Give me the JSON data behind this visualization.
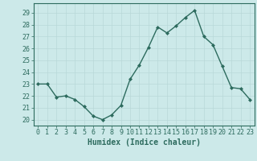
{
  "x": [
    0,
    1,
    2,
    3,
    4,
    5,
    6,
    7,
    8,
    9,
    10,
    11,
    12,
    13,
    14,
    15,
    16,
    17,
    18,
    19,
    20,
    21,
    22,
    23
  ],
  "y": [
    23,
    23,
    21.9,
    22,
    21.7,
    21.1,
    20.3,
    20.0,
    20.4,
    21.2,
    23.4,
    24.6,
    26.1,
    27.8,
    27.3,
    27.9,
    28.6,
    29.2,
    27.0,
    26.3,
    24.5,
    22.7,
    22.6,
    21.7
  ],
  "line_color": "#2d6b5e",
  "marker": "D",
  "marker_size": 2.0,
  "line_width": 1.0,
  "xlabel": "Humidex (Indice chaleur)",
  "xlim": [
    -0.5,
    23.5
  ],
  "ylim": [
    19.5,
    29.8
  ],
  "yticks": [
    20,
    21,
    22,
    23,
    24,
    25,
    26,
    27,
    28,
    29
  ],
  "xticks": [
    0,
    1,
    2,
    3,
    4,
    5,
    6,
    7,
    8,
    9,
    10,
    11,
    12,
    13,
    14,
    15,
    16,
    17,
    18,
    19,
    20,
    21,
    22,
    23
  ],
  "background_color": "#cce9e9",
  "grid_color": "#b8d8d8",
  "tick_color": "#2d6b5e",
  "label_color": "#2d6b5e",
  "xlabel_fontsize": 7,
  "tick_fontsize": 6
}
